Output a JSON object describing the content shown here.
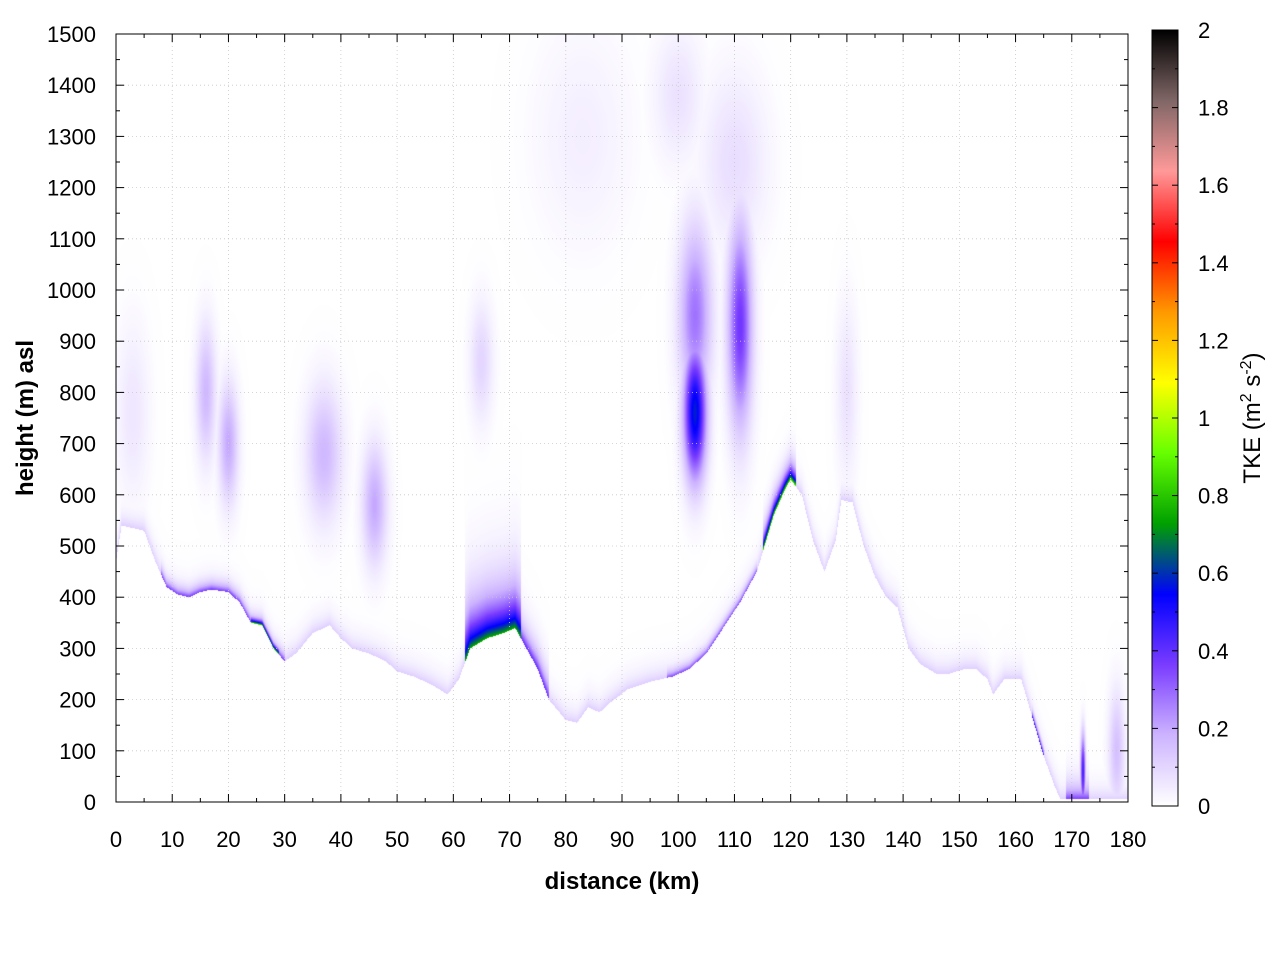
{
  "chart_data": {
    "type": "heatmap",
    "title": "",
    "xlabel": "distance (km)",
    "ylabel": "height (m) asl",
    "xlim": [
      0,
      180
    ],
    "ylim": [
      0,
      1500
    ],
    "xticks": [
      "0",
      "10",
      "20",
      "30",
      "40",
      "50",
      "60",
      "70",
      "80",
      "90",
      "100",
      "110",
      "120",
      "130",
      "140",
      "150",
      "160",
      "170",
      "180"
    ],
    "yticks": [
      "0",
      "100",
      "200",
      "300",
      "400",
      "500",
      "600",
      "700",
      "800",
      "900",
      "1000",
      "1100",
      "1200",
      "1300",
      "1400",
      "1500"
    ],
    "grid": true,
    "colorbar": {
      "label_main": "TKE (m",
      "label_sup1": "2",
      "label_mid": " s",
      "label_sup2": "-2",
      "label_end": ")",
      "range": [
        0,
        2
      ],
      "ticks": [
        "0",
        "0.2",
        "0.4",
        "0.6",
        "0.8",
        "1",
        "1.2",
        "1.4",
        "1.6",
        "1.8",
        "2"
      ],
      "colors": [
        "#ffffff",
        "#cdb4ff",
        "#7a3cff",
        "#0000ff",
        "#00a000",
        "#66ff00",
        "#ffff00",
        "#ff9900",
        "#ff0000",
        "#ff9999",
        "#806666",
        "#000000"
      ]
    },
    "terrain": [
      [
        0,
        470
      ],
      [
        1,
        540
      ],
      [
        3,
        535
      ],
      [
        5,
        530
      ],
      [
        7,
        470
      ],
      [
        9,
        420
      ],
      [
        11,
        405
      ],
      [
        13,
        400
      ],
      [
        15,
        410
      ],
      [
        17,
        415
      ],
      [
        20,
        410
      ],
      [
        22,
        390
      ],
      [
        24,
        350
      ],
      [
        26,
        345
      ],
      [
        28,
        300
      ],
      [
        30,
        275
      ],
      [
        32,
        290
      ],
      [
        35,
        330
      ],
      [
        38,
        345
      ],
      [
        40,
        320
      ],
      [
        42,
        300
      ],
      [
        45,
        290
      ],
      [
        48,
        275
      ],
      [
        50,
        255
      ],
      [
        53,
        245
      ],
      [
        56,
        230
      ],
      [
        59,
        210
      ],
      [
        61,
        240
      ],
      [
        63,
        300
      ],
      [
        66,
        320
      ],
      [
        69,
        330
      ],
      [
        71,
        340
      ],
      [
        73,
        300
      ],
      [
        75,
        260
      ],
      [
        77,
        200
      ],
      [
        80,
        160
      ],
      [
        82,
        155
      ],
      [
        84,
        185
      ],
      [
        86,
        175
      ],
      [
        88,
        195
      ],
      [
        91,
        220
      ],
      [
        95,
        235
      ],
      [
        99,
        245
      ],
      [
        102,
        260
      ],
      [
        105,
        290
      ],
      [
        108,
        340
      ],
      [
        111,
        390
      ],
      [
        114,
        450
      ],
      [
        117,
        560
      ],
      [
        119,
        610
      ],
      [
        120,
        630
      ],
      [
        122,
        600
      ],
      [
        124,
        510
      ],
      [
        126,
        450
      ],
      [
        128,
        510
      ],
      [
        129,
        590
      ],
      [
        131,
        585
      ],
      [
        133,
        500
      ],
      [
        135,
        440
      ],
      [
        137,
        400
      ],
      [
        139,
        380
      ],
      [
        141,
        300
      ],
      [
        143,
        270
      ],
      [
        146,
        250
      ],
      [
        148,
        250
      ],
      [
        151,
        260
      ],
      [
        153,
        260
      ],
      [
        155,
        240
      ],
      [
        156,
        210
      ],
      [
        158,
        240
      ],
      [
        161,
        240
      ],
      [
        163,
        165
      ],
      [
        165,
        90
      ],
      [
        167,
        30
      ],
      [
        168,
        5
      ],
      [
        171,
        5
      ],
      [
        175,
        5
      ],
      [
        180,
        5
      ]
    ],
    "blobs": [
      {
        "x": 16,
        "y": 800,
        "sx": 1.2,
        "sy": 90,
        "v": 0.17
      },
      {
        "x": 20,
        "y": 700,
        "sx": 1.2,
        "sy": 80,
        "v": 0.2
      },
      {
        "x": 37,
        "y": 680,
        "sx": 2.2,
        "sy": 90,
        "v": 0.17
      },
      {
        "x": 46,
        "y": 580,
        "sx": 1.5,
        "sy": 80,
        "v": 0.2
      },
      {
        "x": 65,
        "y": 860,
        "sx": 1.4,
        "sy": 80,
        "v": 0.1
      },
      {
        "x": 103,
        "y": 760,
        "sx": 1.4,
        "sy": 90,
        "v": 0.58
      },
      {
        "x": 103,
        "y": 950,
        "sx": 2.0,
        "sy": 120,
        "v": 0.28
      },
      {
        "x": 111,
        "y": 930,
        "sx": 1.5,
        "sy": 140,
        "v": 0.38
      },
      {
        "x": 110,
        "y": 1250,
        "sx": 4.0,
        "sy": 120,
        "v": 0.08
      },
      {
        "x": 100,
        "y": 1380,
        "sx": 3.0,
        "sy": 90,
        "v": 0.07
      },
      {
        "x": 83,
        "y": 1300,
        "sx": 6.0,
        "sy": 150,
        "v": 0.04
      },
      {
        "x": 3,
        "y": 760,
        "sx": 2.0,
        "sy": 120,
        "v": 0.06
      },
      {
        "x": 130,
        "y": 800,
        "sx": 1.3,
        "sy": 120,
        "v": 0.07
      },
      {
        "x": 178,
        "y": 100,
        "sx": 1.0,
        "sy": 80,
        "v": 0.15
      },
      {
        "x": 172,
        "y": 60,
        "sx": 0.3,
        "sy": 50,
        "v": 0.45
      }
    ],
    "surface": [
      {
        "x0": 8,
        "x1": 30,
        "v": 0.38,
        "d": 14
      },
      {
        "x0": 24,
        "x1": 29,
        "v": 0.9,
        "d": 8
      },
      {
        "x0": 62,
        "x1": 72,
        "v": 0.75,
        "d": 60
      },
      {
        "x0": 72,
        "x1": 77,
        "v": 0.42,
        "d": 30
      },
      {
        "x0": 98,
        "x1": 114,
        "v": 0.36,
        "d": 12
      },
      {
        "x0": 115,
        "x1": 121,
        "v": 0.9,
        "d": 22
      },
      {
        "x0": 163,
        "x1": 165,
        "v": 0.55,
        "d": 10
      },
      {
        "x0": 169,
        "x1": 173,
        "v": 0.38,
        "d": 25
      }
    ]
  }
}
